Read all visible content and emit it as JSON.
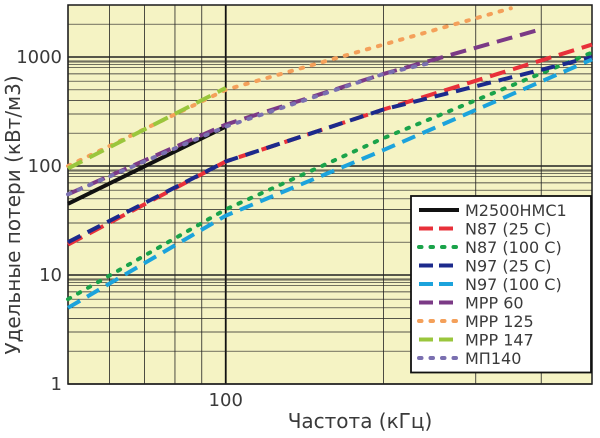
{
  "chart_data": {
    "type": "line",
    "title": "",
    "xlabel": "Частота (кГц)",
    "ylabel": "Удельные потери (кВт/м3)",
    "x_scale": "log",
    "y_scale": "log",
    "xlim": [
      50,
      500
    ],
    "ylim": [
      1,
      3000
    ],
    "x_tick_labels": [
      {
        "value": 100,
        "label": "100"
      }
    ],
    "y_tick_labels": [
      {
        "value": 1,
        "label": "1"
      },
      {
        "value": 10,
        "label": "10"
      },
      {
        "value": 100,
        "label": "100"
      },
      {
        "value": 1000,
        "label": "1000"
      }
    ],
    "grid": true,
    "legend_position": "bottom-right",
    "background": "#f5f3c4",
    "series": [
      {
        "name": "M2500HMC1",
        "color": "#111111",
        "style": "solid",
        "x": [
          50,
          100
        ],
        "y": [
          45,
          230
        ]
      },
      {
        "name": "N87 (25 C)",
        "color": "#e8303a",
        "style": "dash",
        "x": [
          50,
          100,
          200,
          500
        ],
        "y": [
          19,
          110,
          330,
          1300
        ]
      },
      {
        "name": "N87 (100 C)",
        "color": "#1aa34a",
        "style": "dot",
        "x": [
          50,
          100,
          200,
          500
        ],
        "y": [
          6,
          40,
          180,
          1100
        ]
      },
      {
        "name": "N97 (25 C)",
        "color": "#1c2a8c",
        "style": "dashdot",
        "x": [
          50,
          100,
          200,
          500
        ],
        "y": [
          20,
          110,
          330,
          1000
        ]
      },
      {
        "name": "N97 (100 C)",
        "color": "#1ca3dc",
        "style": "dashdot",
        "x": [
          50,
          100,
          200,
          500
        ],
        "y": [
          5,
          35,
          140,
          950
        ]
      },
      {
        "name": "MPP 60",
        "color": "#7b3a86",
        "style": "dash",
        "x": [
          50,
          100,
          200,
          400
        ],
        "y": [
          55,
          240,
          700,
          1800
        ]
      },
      {
        "name": "MPP 125",
        "color": "#f4a05a",
        "style": "dot",
        "x": [
          50,
          100,
          200,
          350
        ],
        "y": [
          100,
          500,
          1300,
          2800
        ]
      },
      {
        "name": "MPP 147",
        "color": "#9ac63c",
        "style": "dash",
        "x": [
          50,
          100
        ],
        "y": [
          95,
          520
        ]
      },
      {
        "name": "МП140",
        "color": "#7a6fb0",
        "style": "dot",
        "x": [
          50,
          100,
          200,
          250
        ],
        "y": [
          55,
          230,
          700,
          900
        ]
      }
    ]
  }
}
